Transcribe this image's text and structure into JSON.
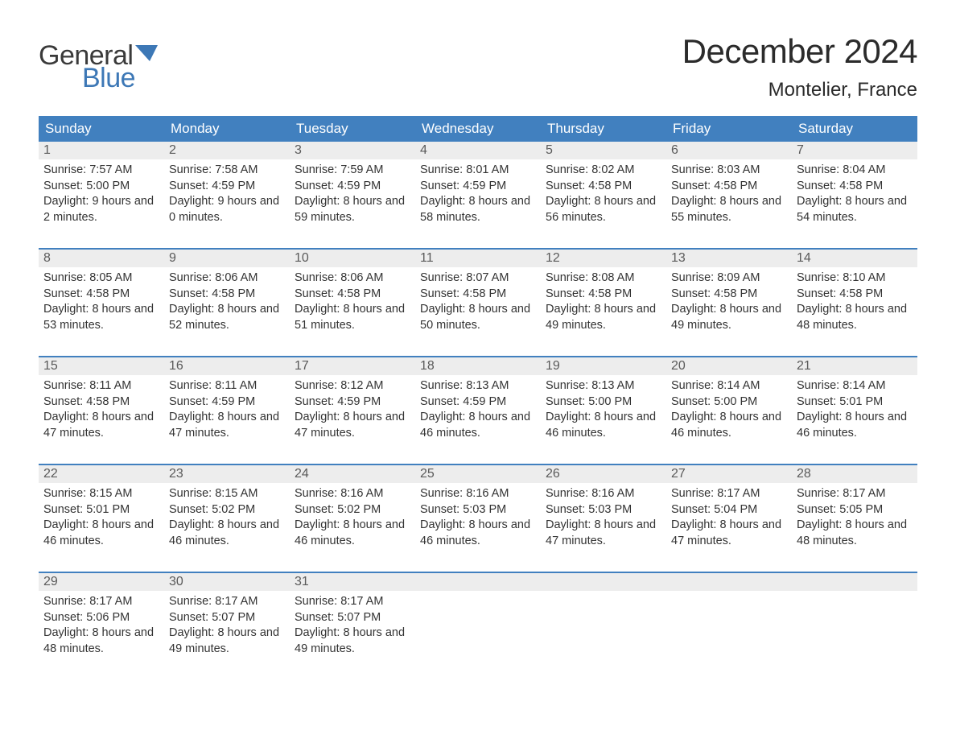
{
  "logo": {
    "text1": "General",
    "text2": "Blue",
    "flag_color": "#3d78b6"
  },
  "title": "December 2024",
  "location": "Montelier, France",
  "colors": {
    "header_bg": "#4180bf",
    "header_text": "#ffffff",
    "daynum_bg": "#ededed",
    "daynum_text": "#5a5a5a",
    "body_text": "#333333",
    "week_border": "#4180bf",
    "background": "#ffffff"
  },
  "typography": {
    "title_fontsize": 42,
    "location_fontsize": 24,
    "dow_fontsize": 17,
    "daynum_fontsize": 16,
    "body_fontsize": 14.5
  },
  "days_of_week": [
    "Sunday",
    "Monday",
    "Tuesday",
    "Wednesday",
    "Thursday",
    "Friday",
    "Saturday"
  ],
  "weeks": [
    [
      {
        "n": "1",
        "sunrise": "7:57 AM",
        "sunset": "5:00 PM",
        "daylight": "9 hours and 2 minutes."
      },
      {
        "n": "2",
        "sunrise": "7:58 AM",
        "sunset": "4:59 PM",
        "daylight": "9 hours and 0 minutes."
      },
      {
        "n": "3",
        "sunrise": "7:59 AM",
        "sunset": "4:59 PM",
        "daylight": "8 hours and 59 minutes."
      },
      {
        "n": "4",
        "sunrise": "8:01 AM",
        "sunset": "4:59 PM",
        "daylight": "8 hours and 58 minutes."
      },
      {
        "n": "5",
        "sunrise": "8:02 AM",
        "sunset": "4:58 PM",
        "daylight": "8 hours and 56 minutes."
      },
      {
        "n": "6",
        "sunrise": "8:03 AM",
        "sunset": "4:58 PM",
        "daylight": "8 hours and 55 minutes."
      },
      {
        "n": "7",
        "sunrise": "8:04 AM",
        "sunset": "4:58 PM",
        "daylight": "8 hours and 54 minutes."
      }
    ],
    [
      {
        "n": "8",
        "sunrise": "8:05 AM",
        "sunset": "4:58 PM",
        "daylight": "8 hours and 53 minutes."
      },
      {
        "n": "9",
        "sunrise": "8:06 AM",
        "sunset": "4:58 PM",
        "daylight": "8 hours and 52 minutes."
      },
      {
        "n": "10",
        "sunrise": "8:06 AM",
        "sunset": "4:58 PM",
        "daylight": "8 hours and 51 minutes."
      },
      {
        "n": "11",
        "sunrise": "8:07 AM",
        "sunset": "4:58 PM",
        "daylight": "8 hours and 50 minutes."
      },
      {
        "n": "12",
        "sunrise": "8:08 AM",
        "sunset": "4:58 PM",
        "daylight": "8 hours and 49 minutes."
      },
      {
        "n": "13",
        "sunrise": "8:09 AM",
        "sunset": "4:58 PM",
        "daylight": "8 hours and 49 minutes."
      },
      {
        "n": "14",
        "sunrise": "8:10 AM",
        "sunset": "4:58 PM",
        "daylight": "8 hours and 48 minutes."
      }
    ],
    [
      {
        "n": "15",
        "sunrise": "8:11 AM",
        "sunset": "4:58 PM",
        "daylight": "8 hours and 47 minutes."
      },
      {
        "n": "16",
        "sunrise": "8:11 AM",
        "sunset": "4:59 PM",
        "daylight": "8 hours and 47 minutes."
      },
      {
        "n": "17",
        "sunrise": "8:12 AM",
        "sunset": "4:59 PM",
        "daylight": "8 hours and 47 minutes."
      },
      {
        "n": "18",
        "sunrise": "8:13 AM",
        "sunset": "4:59 PM",
        "daylight": "8 hours and 46 minutes."
      },
      {
        "n": "19",
        "sunrise": "8:13 AM",
        "sunset": "5:00 PM",
        "daylight": "8 hours and 46 minutes."
      },
      {
        "n": "20",
        "sunrise": "8:14 AM",
        "sunset": "5:00 PM",
        "daylight": "8 hours and 46 minutes."
      },
      {
        "n": "21",
        "sunrise": "8:14 AM",
        "sunset": "5:01 PM",
        "daylight": "8 hours and 46 minutes."
      }
    ],
    [
      {
        "n": "22",
        "sunrise": "8:15 AM",
        "sunset": "5:01 PM",
        "daylight": "8 hours and 46 minutes."
      },
      {
        "n": "23",
        "sunrise": "8:15 AM",
        "sunset": "5:02 PM",
        "daylight": "8 hours and 46 minutes."
      },
      {
        "n": "24",
        "sunrise": "8:16 AM",
        "sunset": "5:02 PM",
        "daylight": "8 hours and 46 minutes."
      },
      {
        "n": "25",
        "sunrise": "8:16 AM",
        "sunset": "5:03 PM",
        "daylight": "8 hours and 46 minutes."
      },
      {
        "n": "26",
        "sunrise": "8:16 AM",
        "sunset": "5:03 PM",
        "daylight": "8 hours and 47 minutes."
      },
      {
        "n": "27",
        "sunrise": "8:17 AM",
        "sunset": "5:04 PM",
        "daylight": "8 hours and 47 minutes."
      },
      {
        "n": "28",
        "sunrise": "8:17 AM",
        "sunset": "5:05 PM",
        "daylight": "8 hours and 48 minutes."
      }
    ],
    [
      {
        "n": "29",
        "sunrise": "8:17 AM",
        "sunset": "5:06 PM",
        "daylight": "8 hours and 48 minutes."
      },
      {
        "n": "30",
        "sunrise": "8:17 AM",
        "sunset": "5:07 PM",
        "daylight": "8 hours and 49 minutes."
      },
      {
        "n": "31",
        "sunrise": "8:17 AM",
        "sunset": "5:07 PM",
        "daylight": "8 hours and 49 minutes."
      },
      null,
      null,
      null,
      null
    ]
  ],
  "labels": {
    "sunrise": "Sunrise:",
    "sunset": "Sunset:",
    "daylight": "Daylight:"
  }
}
